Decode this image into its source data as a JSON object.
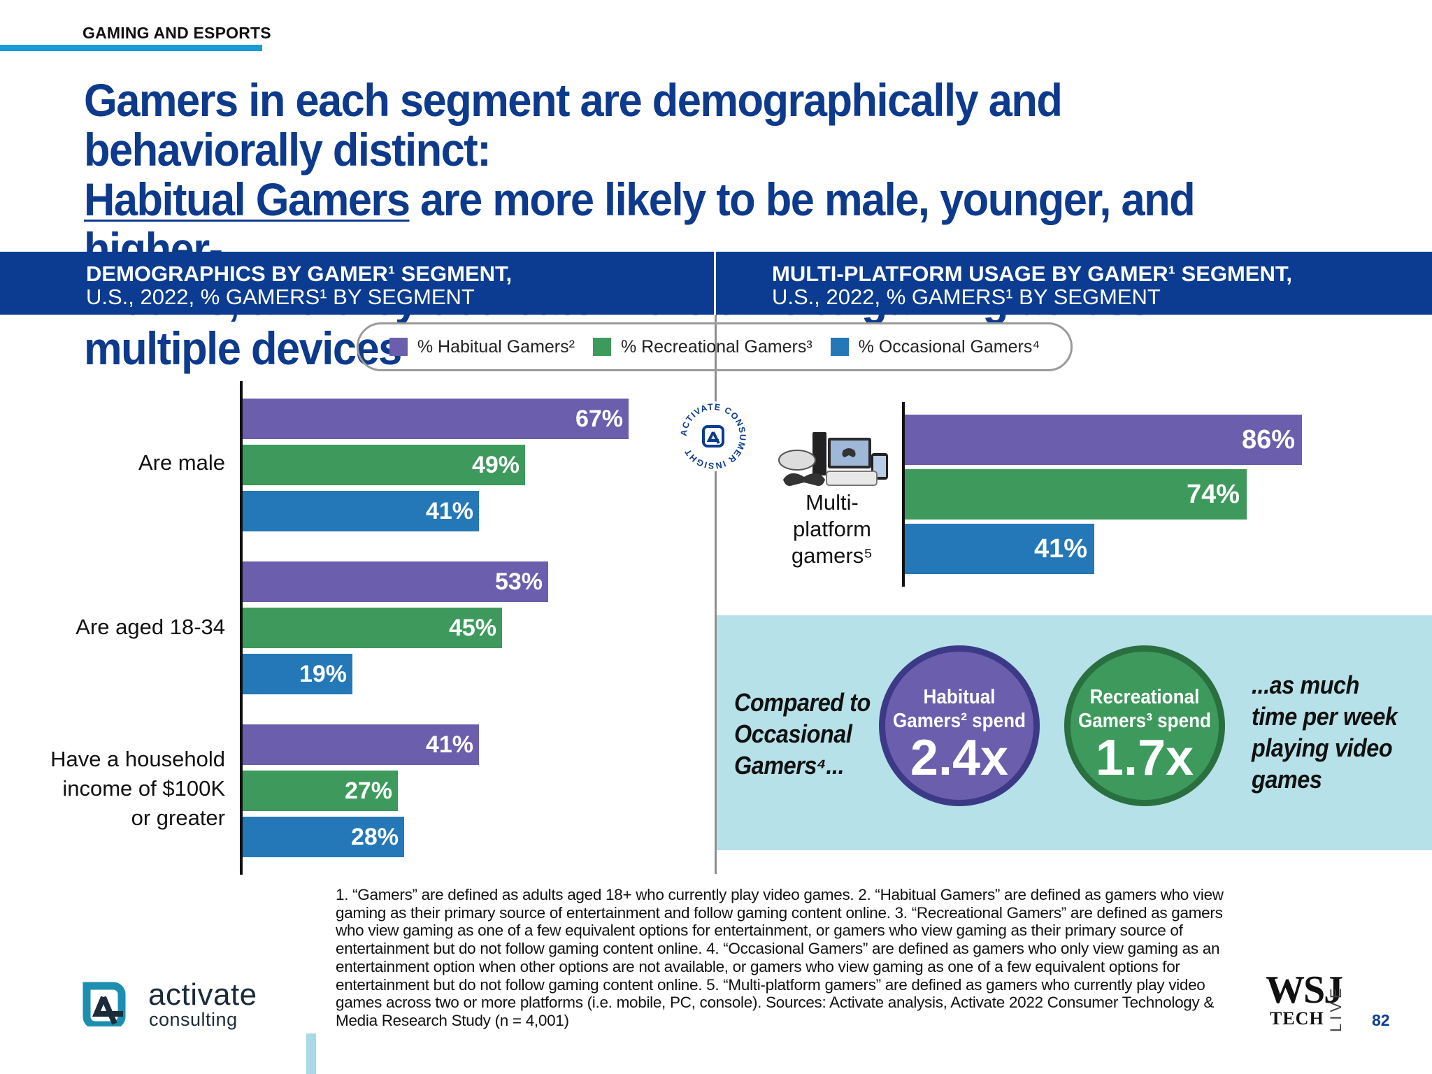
{
  "section_tag": "GAMING AND ESPORTS",
  "headline": {
    "line1": "Gamers in each segment are demographically and behaviorally distinct:",
    "line2_underlined": "Habitual Gamers",
    "line2_rest": " are more likely to be male, younger, and higher-",
    "line3": "income, and they dedicate more time to gaming across multiple devices"
  },
  "band": {
    "left_title": "DEMOGRAPHICS BY GAMER¹ SEGMENT,",
    "left_sub": "U.S., 2022, % GAMERS¹ BY SEGMENT",
    "right_title": "MULTI-PLATFORM USAGE BY GAMER¹ SEGMENT,",
    "right_sub": "U.S., 2022, % GAMERS¹ BY SEGMENT"
  },
  "colors": {
    "habitual": "#6b5ead",
    "recreational": "#3d9a5c",
    "occasional": "#2478b8",
    "band": "#0b3c91",
    "insight_bg": "#b6e1e8"
  },
  "legend": [
    {
      "label": "% Habitual Gamers²",
      "color_key": "habitual"
    },
    {
      "label": "% Recreational Gamers³",
      "color_key": "recreational"
    },
    {
      "label": "% Occasional Gamers⁴",
      "color_key": "occasional"
    }
  ],
  "chart_data": [
    {
      "type": "bar",
      "orientation": "horizontal",
      "title": "DEMOGRAPHICS BY GAMER¹ SEGMENT, U.S., 2022, % GAMERS¹ BY SEGMENT",
      "categories": [
        "Are male",
        "Are aged 18-34",
        "Have a household income of $100K or greater"
      ],
      "series": [
        {
          "name": "% Habitual Gamers²",
          "values": [
            67,
            53,
            41
          ],
          "labels": [
            "67%",
            "53%",
            "41%"
          ]
        },
        {
          "name": "% Recreational Gamers³",
          "values": [
            49,
            45,
            27
          ],
          "labels": [
            "49%",
            "45%",
            "27%"
          ]
        },
        {
          "name": "% Occasional Gamers⁴",
          "values": [
            41,
            19,
            28
          ],
          "labels": [
            "41%",
            "19%",
            "28%"
          ]
        }
      ],
      "xlim": [
        0,
        100
      ]
    },
    {
      "type": "bar",
      "orientation": "horizontal",
      "title": "MULTI-PLATFORM USAGE BY GAMER¹ SEGMENT, U.S., 2022, % GAMERS¹ BY SEGMENT",
      "categories": [
        "Multi-platform gamers⁵"
      ],
      "series": [
        {
          "name": "% Habitual Gamers²",
          "values": [
            86
          ],
          "labels": [
            "86%"
          ]
        },
        {
          "name": "% Recreational Gamers³",
          "values": [
            74
          ],
          "labels": [
            "74%"
          ]
        },
        {
          "name": "% Occasional Gamers⁴",
          "values": [
            41
          ],
          "labels": [
            "41%"
          ]
        }
      ],
      "xlim": [
        0,
        100
      ]
    }
  ],
  "left_categories": [
    {
      "lines": [
        "Are male"
      ]
    },
    {
      "lines": [
        "Are aged 18-34"
      ]
    },
    {
      "lines": [
        "Have a household",
        "income of $100K",
        "or greater"
      ]
    }
  ],
  "multiplatform_label": [
    "Multi-",
    "platform",
    "gamers⁵"
  ],
  "badge_text": "ACTIVATE CONSUMER INSIGHT",
  "insight": {
    "compare": [
      "Compared to",
      "Occasional",
      "Gamers⁴..."
    ],
    "habitual_text": [
      "Habitual",
      "Gamers² spend"
    ],
    "habitual_value": "2.4x",
    "recreational_text": [
      "Recreational",
      "Gamers³ spend"
    ],
    "recreational_value": "1.7x",
    "as_much": [
      "...as much",
      "time per week",
      "playing video",
      "games"
    ]
  },
  "footnote": "1. “Gamers” are defined as adults aged 18+ who currently play video games.  2. “Habitual Gamers” are defined as gamers who view gaming as their primary source of entertainment and follow gaming content online.  3. “Recreational Gamers” are defined as gamers who view gaming as one of a few equivalent options for entertainment, or gamers who view gaming as their primary source of entertainment but do not follow gaming content online.  4. “Occasional Gamers” are defined as gamers who only view gaming as an entertainment option when other options are not available, or gamers who view gaming as one of a few equivalent options for entertainment but do not follow gaming content online.  5. “Multi-platform gamers” are defined as gamers who currently play video games across two or more platforms (i.e. mobile, PC, console). Sources: Activate analysis, Activate 2022 Consumer Technology & Media Research Study (n = 4,001)",
  "logo": {
    "name": "activate",
    "sub": "consulting"
  },
  "wsj": {
    "mark": "WSJ",
    "tech": "TECH",
    "live": "LIVE"
  },
  "page_number": "82"
}
